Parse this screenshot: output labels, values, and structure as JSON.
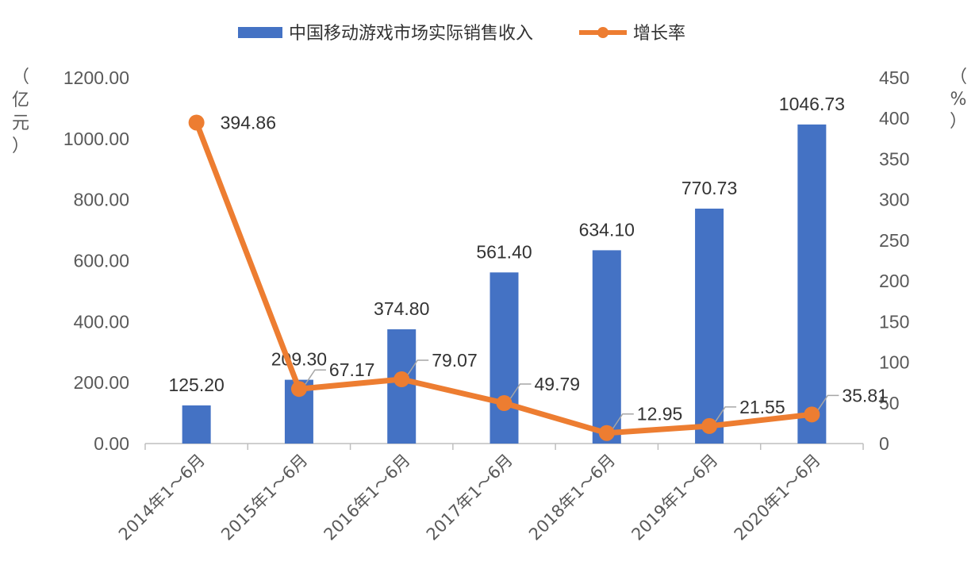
{
  "chart_data": {
    "type": "bar",
    "categories": [
      "2014年1～6月",
      "2015年1～6月",
      "2016年1～6月",
      "2017年1～6月",
      "2018年1～6月",
      "2019年1～6月",
      "2020年1～6月"
    ],
    "series": [
      {
        "name": "中国移动游戏市场实际销售收入",
        "type": "bar",
        "axis": "left",
        "color": "#4472C4",
        "values": [
          125.2,
          209.3,
          374.8,
          561.4,
          634.1,
          770.73,
          1046.73
        ],
        "labels": [
          "125.20",
          "209.30",
          "374.80",
          "561.40",
          "634.10",
          "770.73",
          "1046.73"
        ]
      },
      {
        "name": "增长率",
        "type": "line",
        "axis": "right",
        "color": "#ED7D31",
        "values": [
          394.86,
          67.17,
          79.07,
          49.79,
          12.95,
          21.55,
          35.81
        ],
        "labels": [
          "394.86",
          "67.17",
          "79.07",
          "49.79",
          "12.95",
          "21.55",
          "35.81"
        ]
      }
    ],
    "y_left": {
      "unit_chars": [
        "（",
        "亿",
        "元",
        "）"
      ],
      "ylim": [
        0,
        1200
      ],
      "ticks": [
        "0.00",
        "200.00",
        "400.00",
        "600.00",
        "800.00",
        "1000.00",
        "1200.00"
      ]
    },
    "y_right": {
      "unit_chars": [
        "（",
        "%",
        "）"
      ],
      "ylim": [
        0,
        450
      ],
      "ticks": [
        "0",
        "50",
        "100",
        "150",
        "200",
        "250",
        "300",
        "350",
        "400",
        "450"
      ]
    },
    "legend_position": "top-center",
    "grid": false
  }
}
